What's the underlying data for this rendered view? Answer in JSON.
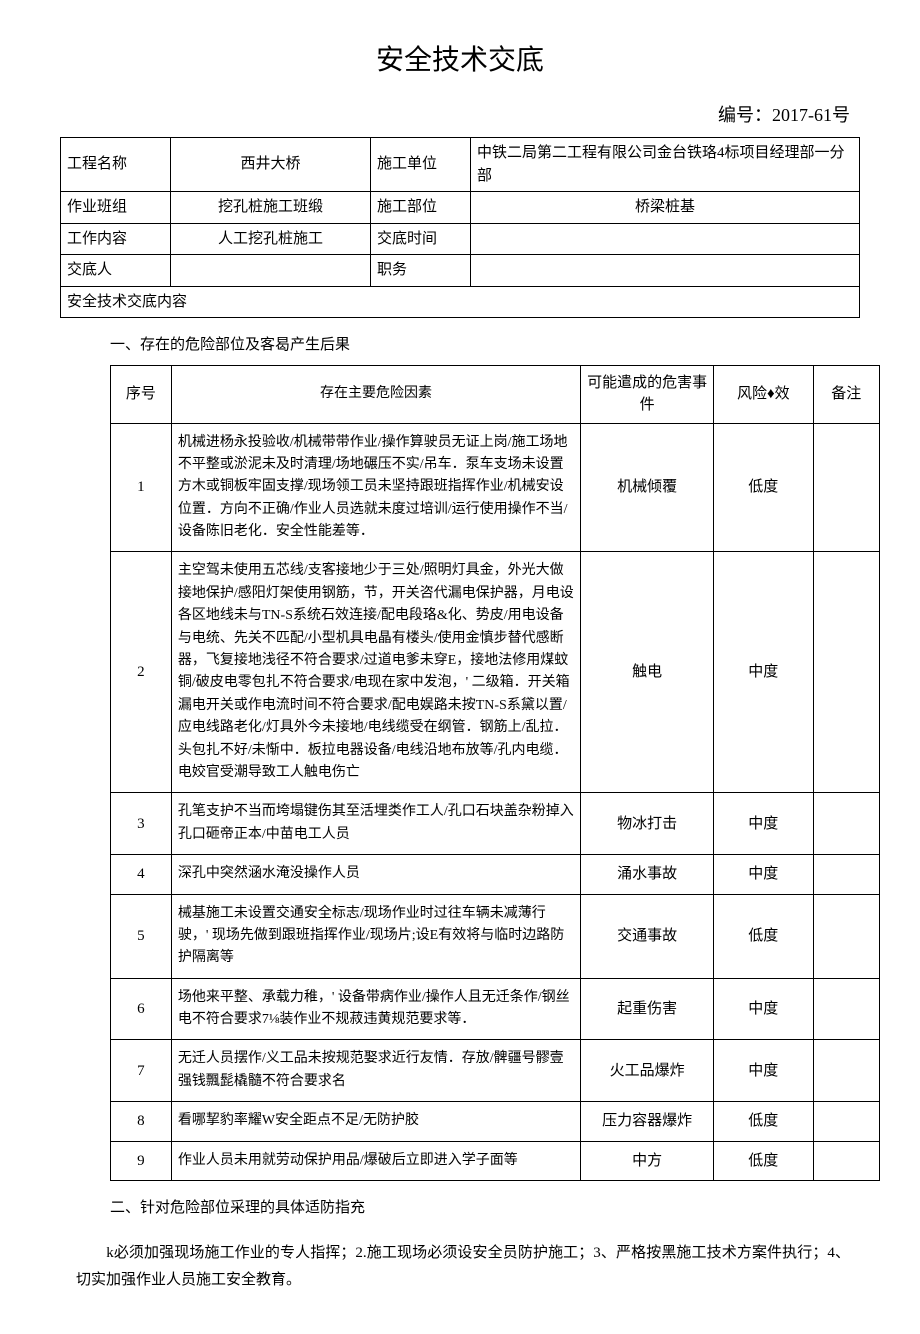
{
  "document": {
    "title": "安全技术交底",
    "numberLabel": "编号：",
    "number": "2017-61号"
  },
  "header": {
    "row1": {
      "label1": "工程名称",
      "value1": "西井大桥",
      "label2": "施工单位",
      "value2": "中铁二局第二工程有限公司金台铁珞4标项目经理部一分部"
    },
    "row2": {
      "label1": "作业班组",
      "value1": "挖孔桩施工班缎",
      "label2": "施工部位",
      "value2": "桥梁桩基"
    },
    "row3": {
      "label1": "工作内容",
      "value1": "人工挖孔桩施工",
      "label2": "交底时间",
      "value2": ""
    },
    "row4": {
      "label1": "交底人",
      "value1": "",
      "label2": "职务",
      "value2": ""
    },
    "contentHeader": "安全技术交底内容"
  },
  "section1": {
    "heading": "一、存在的危险部位及客曷产生后果",
    "tableHeaders": {
      "seq": "序号",
      "factor": "存在主要危险因素",
      "event": "可能遣成的危害事件",
      "risk": "风险♦效",
      "note": "备注"
    },
    "rows": [
      {
        "seq": "1",
        "factor": "机械进杨永投验收/机械带带作业/操作算驶员无证上岗/施工场地不平整或淤泥未及时清理/场地碾压不实/吊车．泵车支场未设置方木或铜板牢固支撑/现场领工员未坚持跟班指挥作业/机械安设位置．方向不正确/作业人员选就未度过培训/运行使用操作不当/设备陈旧老化．安全性能差等．",
        "event": "机械倾覆",
        "risk": "低度",
        "note": ""
      },
      {
        "seq": "2",
        "factor": "主空驾未使用五芯线/支客接地少于三处/照明灯具金，外光大做接地保护/感阳灯架使用钢筋，节，开关咨代漏电保护器，月电设各区地线未与TN-S系统石效连接/配电段珞&化、势皮/用电设备与电统、先关不匹配/小型机具电晶有楼头/使用金慎步替代感断器，飞复接地浅径不符合要求/过道电爹未穿E，接地法修用煤蚊铜/破皮电零包扎不符合要求/电现在家中发泡，' 二级箱．开关箱漏电开关或作电流时间不符合要求/配电娱路未按TN-S系黛以置/应电线路老化/灯具外今未接地/电线缆受在纲管．钢筋上/乱拉．头包扎不好/未惭中．板拉电器设备/电线沿地布放等/孔内电缆．电姣官受潮导致工人触电伤亡",
        "event": "触电",
        "risk": "中度",
        "note": ""
      },
      {
        "seq": "3",
        "factor": "孔笔支护不当而垮塌键伤其至活埋类作工人/孔口石块盖杂粉掉入孔口砸帝正本/中苗电工人员",
        "event": "物冰打击",
        "risk": "中度",
        "note": ""
      },
      {
        "seq": "4",
        "factor": "深孔中突然涵水淹没操作人员",
        "event": "涌水事故",
        "risk": "中度",
        "note": ""
      },
      {
        "seq": "5",
        "factor": "械基施工未设置交通安全标志/现场作业时过往车辆未减薄行驶，' 现场先做到跟班指挥作业/现场片;设E有效将与临时边路防护隔离等",
        "event": "交通事故",
        "risk": "低度",
        "note": ""
      },
      {
        "seq": "6",
        "factor": "场他来平整、承载力稚，' 设备带病作业/操作人且无迁条作/钢丝电不符合要求7⅛装作业不规菽违黄规范要求等．",
        "event": "起重伤害",
        "risk": "中度",
        "note": ""
      },
      {
        "seq": "7",
        "factor": "无迁人员摆作/义工品未按规范娶求近行友情．存放/髀疆号髎壹强钱飄髭橇髓不符合要求名",
        "event": "火工品爆炸",
        "risk": "中度",
        "note": ""
      },
      {
        "seq": "8",
        "factor": "看哪挈豹率耀W安全距点不足/无防护胶",
        "event": "压力容器爆炸",
        "risk": "低度",
        "note": ""
      },
      {
        "seq": "9",
        "factor": "作业人员未用就劳动保护用品/爆破后立即进入学子面等",
        "event": "中方",
        "risk": "低度",
        "note": ""
      }
    ]
  },
  "section2": {
    "heading": "二、针对危险部位采理的具体适防指充",
    "paragraph": "　　k必须加强现场施工作业的专人指挥；2.施工现场必须设安全员防护施工；3、严格按黑施工技术方案件执行；4、切实加强作业人员施工安全教育。"
  },
  "styling": {
    "pageWidth": 920,
    "pageHeight": 1301,
    "backgroundColor": "#ffffff",
    "textColor": "#000000",
    "borderColor": "#000000",
    "titleFontSize": 28,
    "bodyFontSize": 15,
    "tableFontSize": 14,
    "fontFamily": "SimSun"
  }
}
